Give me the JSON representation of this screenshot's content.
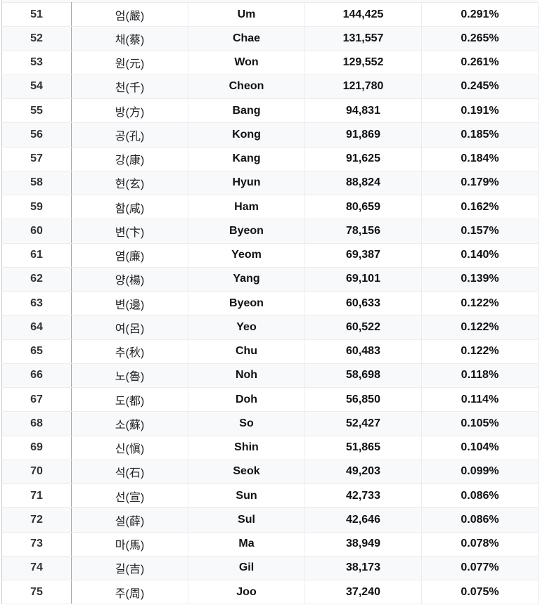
{
  "table": {
    "rows": [
      [
        "51",
        "엄(嚴)",
        "Um",
        "144,425",
        "0.291%"
      ],
      [
        "52",
        "채(蔡)",
        "Chae",
        "131,557",
        "0.265%"
      ],
      [
        "53",
        "원(元)",
        "Won",
        "129,552",
        "0.261%"
      ],
      [
        "54",
        "천(千)",
        "Cheon",
        "121,780",
        "0.245%"
      ],
      [
        "55",
        "방(方)",
        "Bang",
        "94,831",
        "0.191%"
      ],
      [
        "56",
        "공(孔)",
        "Kong",
        "91,869",
        "0.185%"
      ],
      [
        "57",
        "강(康)",
        "Kang",
        "91,625",
        "0.184%"
      ],
      [
        "58",
        "현(玄)",
        "Hyun",
        "88,824",
        "0.179%"
      ],
      [
        "59",
        "함(咸)",
        "Ham",
        "80,659",
        "0.162%"
      ],
      [
        "60",
        "변(卞)",
        "Byeon",
        "78,156",
        "0.157%"
      ],
      [
        "61",
        "염(廉)",
        "Yeom",
        "69,387",
        "0.140%"
      ],
      [
        "62",
        "양(楊)",
        "Yang",
        "69,101",
        "0.139%"
      ],
      [
        "63",
        "변(邊)",
        "Byeon",
        "60,633",
        "0.122%"
      ],
      [
        "64",
        "여(呂)",
        "Yeo",
        "60,522",
        "0.122%"
      ],
      [
        "65",
        "추(秋)",
        "Chu",
        "60,483",
        "0.122%"
      ],
      [
        "66",
        "노(魯)",
        "Noh",
        "58,698",
        "0.118%"
      ],
      [
        "67",
        "도(都)",
        "Doh",
        "56,850",
        "0.114%"
      ],
      [
        "68",
        "소(蘇)",
        "So",
        "52,427",
        "0.105%"
      ],
      [
        "69",
        "신(愼)",
        "Shin",
        "51,865",
        "0.104%"
      ],
      [
        "70",
        "석(石)",
        "Seok",
        "49,203",
        "0.099%"
      ],
      [
        "71",
        "선(宣)",
        "Sun",
        "42,733",
        "0.086%"
      ],
      [
        "72",
        "설(薛)",
        "Sul",
        "42,646",
        "0.086%"
      ],
      [
        "73",
        "마(馬)",
        "Ma",
        "38,949",
        "0.078%"
      ],
      [
        "74",
        "길(吉)",
        "Gil",
        "38,173",
        "0.077%"
      ],
      [
        "75",
        "주(周)",
        "Joo",
        "37,240",
        "0.075%"
      ]
    ]
  }
}
